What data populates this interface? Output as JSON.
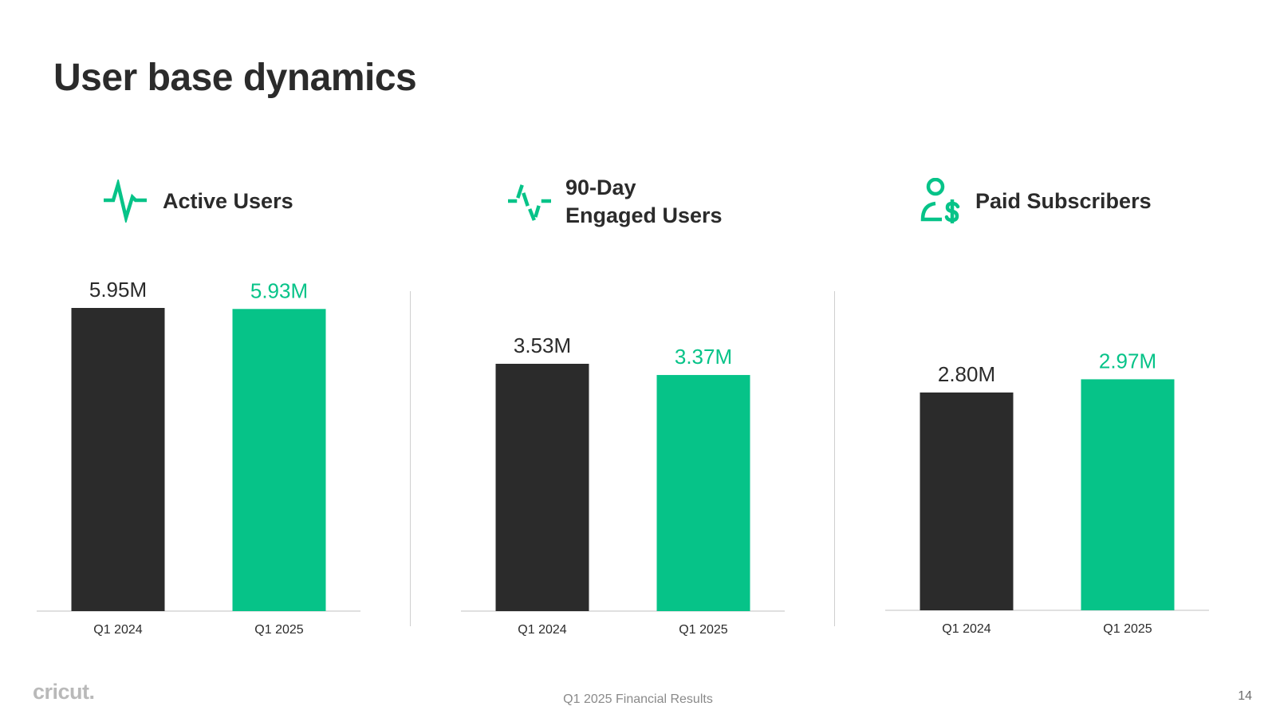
{
  "title": "User base dynamics",
  "colors": {
    "prior": "#2b2b2b",
    "current": "#06c388",
    "text": "#2b2b2b",
    "accent": "#06c388"
  },
  "panels": [
    {
      "icon": "pulse-icon",
      "label_lines": [
        "Active Users"
      ]
    },
    {
      "icon": "dashed-pulse-icon",
      "label_lines": [
        "90-Day",
        "Engaged Users"
      ]
    },
    {
      "icon": "subscriber-dollar-icon",
      "label_lines": [
        "Paid Subscribers"
      ]
    }
  ],
  "chart_data": [
    {
      "type": "bar",
      "title": "Active Users",
      "categories": [
        "Q1 2024",
        "Q1 2025"
      ],
      "values": [
        5.95,
        5.93
      ],
      "value_labels": [
        "5.95M",
        "5.93M"
      ],
      "unit": "M",
      "ylim": [
        0,
        5.95
      ],
      "grid": false
    },
    {
      "type": "bar",
      "title": "90-Day Engaged Users",
      "categories": [
        "Q1 2024",
        "Q1 2025"
      ],
      "values": [
        3.53,
        3.37
      ],
      "value_labels": [
        "3.53M",
        "3.37M"
      ],
      "unit": "M",
      "ylim": [
        0,
        3.53
      ],
      "grid": false
    },
    {
      "type": "bar",
      "title": "Paid Subscribers",
      "categories": [
        "Q1 2024",
        "Q1 2025"
      ],
      "values": [
        2.8,
        2.97
      ],
      "value_labels": [
        "2.80M",
        "2.97M"
      ],
      "unit": "M",
      "ylim": [
        0,
        2.8
      ],
      "grid": false
    }
  ],
  "footer": {
    "brand": "cricut.",
    "center": "Q1 2025 Financial Results",
    "page": "14"
  }
}
